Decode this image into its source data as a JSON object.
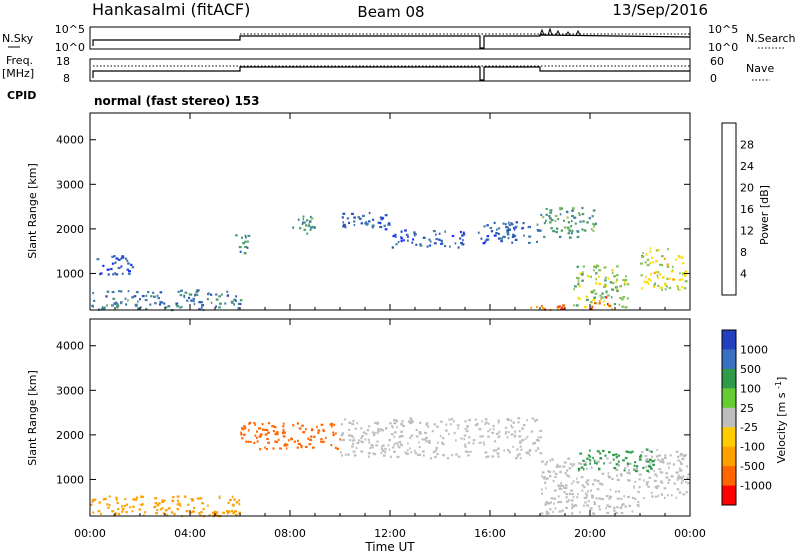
{
  "header": {
    "station": "Hankasalmi (fitACF)",
    "beam": "Beam 08",
    "date": "13/Sep/2016"
  },
  "top_panels": {
    "nsky": {
      "left_label": "N.Sky",
      "left_ticks": [
        "10^5",
        "10^0"
      ],
      "right_label": "N.Search",
      "right_ticks": [
        "10^5",
        "10^0"
      ]
    },
    "freq": {
      "left_label": "Freq.",
      "left_unit": "[MHz]",
      "left_ticks": [
        "18",
        "8"
      ],
      "right_label": "Nave",
      "right_ticks": [
        "60",
        "0"
      ]
    },
    "cpid": {
      "label": "CPID",
      "text": "normal (fast stereo) 153"
    }
  },
  "colors": {
    "power": [
      "#1a2bff",
      "#2a55b8",
      "#3f7aa8",
      "#4a9a70",
      "#88c060",
      "#ffdd00",
      "#ffa000",
      "#ff5a00",
      "#ff0000"
    ],
    "velocity": [
      "#2040c0",
      "#3a70c0",
      "#2e9a4a",
      "#66cc33",
      "#bebebe",
      "#ffcc00",
      "#ffa000",
      "#ff6600",
      "#ff0000"
    ]
  },
  "chart_data": [
    {
      "type": "heatmap",
      "name": "power",
      "ylabel": "Slant Range [km]",
      "yticks": [
        "1000",
        "2000",
        "3000",
        "4000"
      ],
      "ylim": [
        180,
        4600
      ],
      "xlim": [
        0,
        24
      ],
      "colorbar": {
        "label": "Power [dB]",
        "ticks": [
          "4",
          "8",
          "12",
          "16",
          "20",
          "24",
          "28"
        ],
        "range": [
          0,
          32
        ]
      },
      "regions": [
        {
          "x": [
            0.2,
            1.8
          ],
          "y": [
            1000,
            1450
          ],
          "value": 6
        },
        {
          "x": [
            0.0,
            6.0
          ],
          "y": [
            200,
            650
          ],
          "value": 9
        },
        {
          "x": [
            5.8,
            6.4
          ],
          "y": [
            1450,
            1900
          ],
          "value": 10
        },
        {
          "x": [
            8.0,
            9.0
          ],
          "y": [
            1900,
            2300
          ],
          "value": 11
        },
        {
          "x": [
            10.0,
            12.0
          ],
          "y": [
            2000,
            2400
          ],
          "value": 7
        },
        {
          "x": [
            12.0,
            15.0
          ],
          "y": [
            1600,
            2000
          ],
          "value": 6
        },
        {
          "x": [
            15.5,
            18.0
          ],
          "y": [
            1700,
            2200
          ],
          "value": 7
        },
        {
          "x": [
            18.0,
            20.2
          ],
          "y": [
            1800,
            2500
          ],
          "value": 12
        },
        {
          "x": [
            19.3,
            21.5
          ],
          "y": [
            250,
            1200
          ],
          "value": 16
        },
        {
          "x": [
            20.0,
            21.0
          ],
          "y": [
            220,
            500
          ],
          "value": 28
        },
        {
          "x": [
            17.6,
            19.0
          ],
          "y": [
            200,
            330
          ],
          "value": 26
        },
        {
          "x": [
            22.0,
            24.0
          ],
          "y": [
            600,
            1600
          ],
          "value": 18
        }
      ]
    },
    {
      "type": "heatmap",
      "name": "velocity",
      "ylabel": "Slant Range [km]",
      "yticks": [
        "1000",
        "2000",
        "3000",
        "4000"
      ],
      "ylim": [
        180,
        4600
      ],
      "xlim": [
        0,
        24
      ],
      "xlabel": "Time UT",
      "xticks": [
        "00:00",
        "04:00",
        "08:00",
        "12:00",
        "16:00",
        "20:00",
        "00:00"
      ],
      "colorbar": {
        "label": "Velocity [m s^-1]",
        "ticks": [
          "1000",
          "500",
          "100",
          "25",
          "-25",
          "-100",
          "-500",
          "-1000"
        ]
      },
      "regions": [
        {
          "x": [
            0.0,
            6.0
          ],
          "y": [
            200,
            650
          ],
          "value": "-100"
        },
        {
          "x": [
            6.0,
            10.0
          ],
          "y": [
            1700,
            2300
          ],
          "value": "-500"
        },
        {
          "x": [
            10.0,
            18.0
          ],
          "y": [
            1500,
            2400
          ],
          "value": "0"
        },
        {
          "x": [
            18.0,
            22.0
          ],
          "y": [
            250,
            1500
          ],
          "value": "0"
        },
        {
          "x": [
            22.0,
            24.0
          ],
          "y": [
            600,
            1700
          ],
          "value": "0"
        },
        {
          "x": [
            19.5,
            22.5
          ],
          "y": [
            1200,
            1700
          ],
          "value": "100"
        }
      ]
    }
  ]
}
